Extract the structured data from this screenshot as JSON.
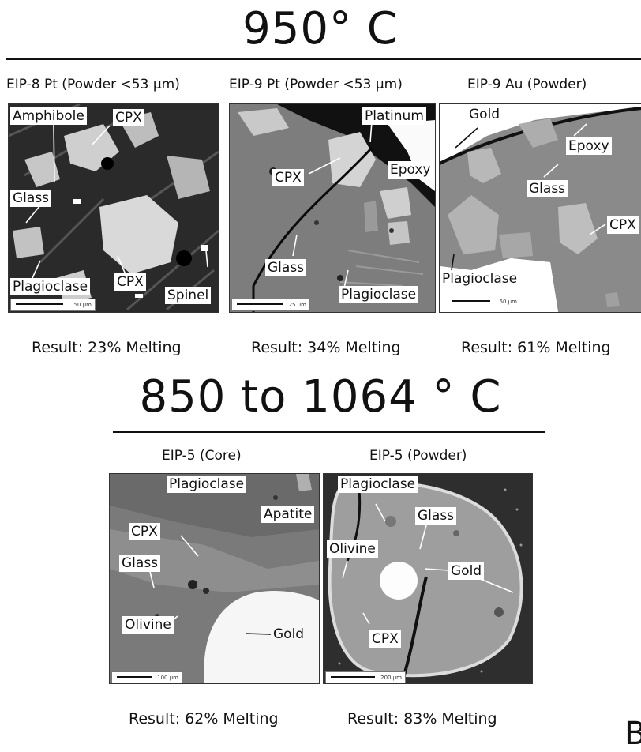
{
  "section_top": {
    "title": "950° C"
  },
  "section_bottom": {
    "title": "850 to 1064 ° C"
  },
  "panels": [
    {
      "caption": "EIP-8 Pt (Powder <53 μm)",
      "labels": [
        "Amphibole",
        "CPX",
        "Glass",
        "CPX",
        "Plagioclase",
        "Spinel"
      ],
      "scale": "50 μm",
      "result": "Result: 23% Melting"
    },
    {
      "caption": "EIP-9 Pt (Powder <53 μm)",
      "labels": [
        "Platinum",
        "CPX",
        "Epoxy",
        "Glass",
        "Plagioclase"
      ],
      "scale": "25 μm",
      "result": "Result: 34% Melting"
    },
    {
      "caption": "EIP-9 Au (Powder)",
      "labels": [
        "Gold",
        "Epoxy",
        "Glass",
        "CPX",
        "Plagioclase"
      ],
      "scale": "50 μm",
      "result": "Result: 61% Melting"
    },
    {
      "caption": "EIP-5 (Core)",
      "labels": [
        "Plagioclase",
        "Apatite",
        "CPX",
        "Glass",
        "Olivine",
        "Gold"
      ],
      "scale": "100 μm",
      "result": "Result: 62% Melting"
    },
    {
      "caption": "EIP-5 (Powder)",
      "labels": [
        "Plagioclase",
        "Glass",
        "Olivine",
        "Gold",
        "CPX"
      ],
      "scale": "200 μm",
      "result": "Result: 83% Melting"
    }
  ],
  "panel_label": "B"
}
